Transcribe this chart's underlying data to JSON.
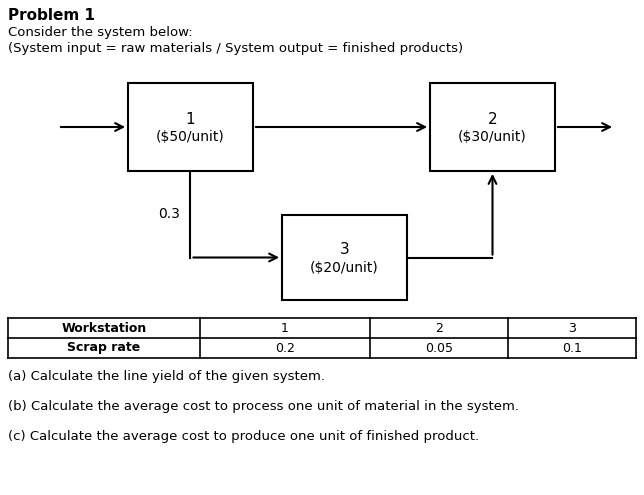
{
  "title": "Problem 1",
  "subtitle1": "Consider the system below:",
  "subtitle2": "(System input = raw materials / System output = finished products)",
  "box1": {
    "label": "1",
    "sublabel": "($50/unit)"
  },
  "box2": {
    "label": "2",
    "sublabel": "($30/unit)"
  },
  "box3": {
    "label": "3",
    "sublabel": "($20/unit)"
  },
  "label_03": "0.3",
  "table_header": [
    "Workstation",
    "1",
    "2",
    "3"
  ],
  "table_row": [
    "Scrap rate",
    "0.2",
    "0.05",
    "0.1"
  ],
  "qa": "(a) Calculate the line yield of the given system.",
  "qb": "(b) Calculate the average cost to process one unit of material in the system.",
  "qc": "(c) Calculate the average cost to produce one unit of finished product.",
  "bg_color": "#ffffff",
  "text_color": "#000000"
}
